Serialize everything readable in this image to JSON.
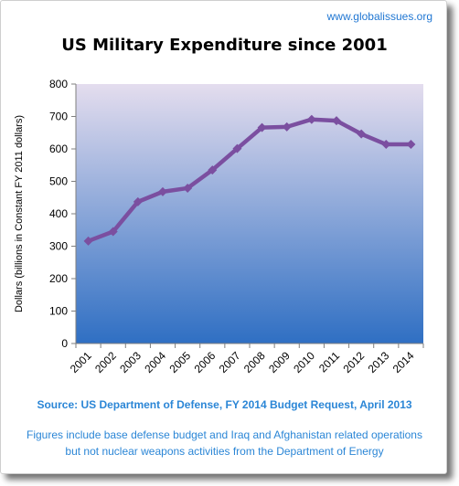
{
  "site": "www.globalissues.org",
  "source": "Source: US Department of Defense, FY 2014 Budget Request, April 2013",
  "note": "Figures include base defense budget and Iraq and Afghanistan related operations but not nuclear weapons activities from the Department of Energy",
  "colors": {
    "line": "#7b4fa0",
    "bg_top": "#e4ddee",
    "bg_bottom": "#2f6fc3",
    "site_text": "#1f76d2",
    "source_text": "#2b86d6"
  },
  "chart_data": {
    "type": "line",
    "title": "US Military Expenditure since 2001",
    "xlabel": "",
    "ylabel": "Dollars (billions in Constant FY 2011 dollars)",
    "ylim": [
      0,
      800
    ],
    "yticks": [
      0,
      100,
      200,
      300,
      400,
      500,
      600,
      700,
      800
    ],
    "grid": false,
    "legend": "none",
    "categories": [
      "2001",
      "2002",
      "2003",
      "2004",
      "2005",
      "2006",
      "2007",
      "2008",
      "2009",
      "2010",
      "2011",
      "2012",
      "2013",
      "2014"
    ],
    "series": [
      {
        "values": [
          316,
          345,
          437,
          468,
          479,
          535,
          601,
          666,
          668,
          691,
          687,
          646,
          614,
          614
        ]
      }
    ]
  }
}
